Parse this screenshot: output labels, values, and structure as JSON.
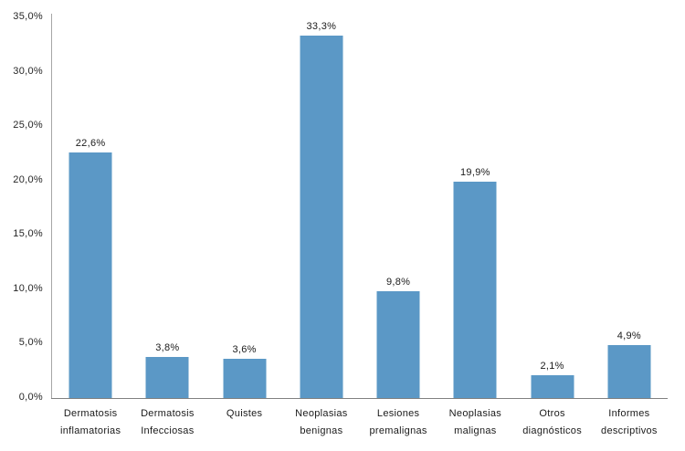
{
  "chart_data": {
    "type": "bar",
    "title": "",
    "xlabel": "",
    "ylabel": "",
    "grid": false,
    "legend": "none",
    "categories": [
      "Dermatosis inflamatorias",
      "Dermatosis Infecciosas",
      "Quistes",
      "Neoplasias benignas",
      "Lesiones premalignas",
      "Neoplasias malignas",
      "Otros diagnósticos",
      "Informes descriptivos"
    ],
    "label_lines": [
      [
        "Dermatosis",
        "inflamatorias"
      ],
      [
        "Dermatosis",
        "Infecciosas"
      ],
      [
        "Quistes"
      ],
      [
        "Neoplasias",
        "benignas"
      ],
      [
        "Lesiones",
        "premalignas"
      ],
      [
        "Neoplasias",
        "malignas"
      ],
      [
        "Otros",
        "diagnósticos"
      ],
      [
        "Informes",
        "descriptivos"
      ]
    ],
    "values": [
      22.6,
      3.8,
      3.6,
      33.3,
      9.8,
      19.9,
      2.1,
      4.9
    ],
    "value_labels": [
      "22,6%",
      "3,8%",
      "3,6%",
      "33,3%",
      "9,8%",
      "19,9%",
      "2,1%",
      "4,9%"
    ],
    "ylim": [
      0,
      35
    ],
    "y_tick_values": [
      0,
      5,
      10,
      15,
      20,
      25,
      30,
      35
    ],
    "y_tick_labels": [
      "0,0%",
      "5,0%",
      "10,0%",
      "15,0%",
      "20,0%",
      "25,0%",
      "30,0%",
      "35,0%"
    ],
    "colors": {
      "bar": "#5b98c6",
      "y_axis": "#a6a6a6",
      "x_axis": "#808080",
      "text": "#1a1a1a"
    }
  }
}
